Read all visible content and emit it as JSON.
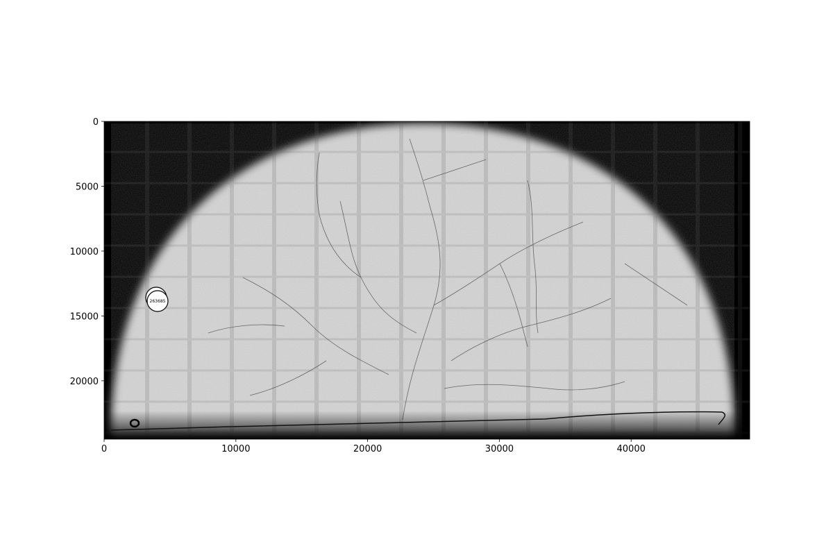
{
  "image": {
    "x_ticks": [
      "0",
      "10000",
      "20000",
      "30000",
      "40000"
    ],
    "y_ticks": [
      "0",
      "5000",
      "10000",
      "15000",
      "20000"
    ],
    "x_range": [
      0,
      49000
    ],
    "y_range": [
      0,
      24500
    ],
    "y_axis_inverted": true,
    "x_tick_values": [
      0,
      10000,
      20000,
      30000,
      40000
    ],
    "y_tick_values": [
      0,
      5000,
      10000,
      15000,
      20000
    ],
    "marker": {
      "label": "263685",
      "x": 4100,
      "y": 13800
    },
    "background_color": "#000000",
    "specimen_color": "#d4d4d4"
  }
}
